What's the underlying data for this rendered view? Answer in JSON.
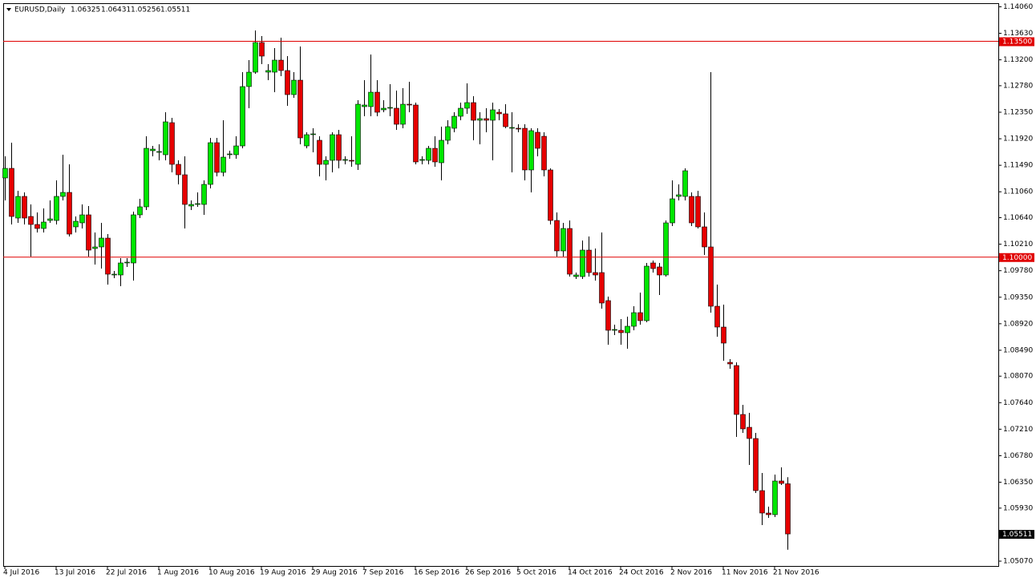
{
  "chart_data": {
    "type": "candlestick",
    "title": "EURUSD,Daily",
    "categories": [
      "4 Jul 2016",
      null,
      null,
      null,
      null,
      null,
      null,
      null,
      "13 Jul 2016",
      null,
      null,
      null,
      null,
      null,
      null,
      null,
      "22 Jul 2016",
      null,
      null,
      null,
      null,
      null,
      null,
      null,
      "1 Aug 2016",
      null,
      null,
      null,
      null,
      null,
      null,
      null,
      "10 Aug 2016",
      null,
      null,
      null,
      null,
      null,
      null,
      null,
      "19 Aug 2016",
      null,
      null,
      null,
      null,
      null,
      null,
      null,
      "29 Aug 2016",
      null,
      null,
      null,
      null,
      null,
      null,
      null,
      "7 Sep 2016",
      null,
      null,
      null,
      null,
      null,
      null,
      null,
      "16 Sep 2016",
      null,
      null,
      null,
      null,
      null,
      null,
      null,
      "26 Sep 2016",
      null,
      null,
      null,
      null,
      null,
      null,
      null,
      "5 Oct 2016",
      null,
      null,
      null,
      null,
      null,
      null,
      null,
      "14 Oct 2016",
      null,
      null,
      null,
      null,
      null,
      null,
      null,
      "24 Oct 2016",
      null,
      null,
      null,
      null,
      null,
      null,
      null,
      "2 Nov 2016",
      null,
      null,
      null,
      null,
      null,
      null,
      null,
      "11 Nov 2016",
      null,
      null,
      null,
      null,
      null,
      null,
      null,
      "21 Nov 2016",
      null,
      null
    ],
    "open": [
      1.11284,
      1.1144,
      1.10634,
      1.10985,
      1.1066,
      1.1053,
      1.10465,
      1.10595,
      1.10595,
      1.10985,
      1.1105,
      1.10491,
      1.10556,
      1.10686,
      1.1014,
      1.10166,
      1.10309,
      1.09711,
      1.09711,
      1.09906,
      1.09906,
      1.10686,
      1.10816,
      1.11726,
      1.117,
      1.11661,
      1.12181,
      1.11505,
      1.11336,
      1.10829,
      1.10855,
      1.10855,
      1.1118,
      1.11856,
      1.11375,
      1.11661,
      1.11661,
      1.11804,
      1.12766,
      1.13,
      1.13481,
      1.13,
      1.13,
      1.13195,
      1.13026,
      1.12636,
      1.1287,
      1.11804,
      1.11986,
      1.11895,
      1.11505,
      1.1157,
      1.11986,
      1.1157,
      1.1157,
      1.11505,
      1.12441,
      1.12441,
      1.12675,
      1.12389,
      1.12415,
      1.12415,
      1.12155,
      1.1248,
      1.12467,
      1.1157,
      1.1157,
      1.11765,
      1.11531,
      1.11895,
      1.1209,
      1.12285,
      1.12415,
      1.12506,
      1.1222,
      1.12246,
      1.1222,
      1.1235,
      1.12324,
      1.1209,
      1.1209,
      1.1209,
      1.11414,
      1.12025,
      1.1196,
      1.11414,
      1.10595,
      1.10101,
      1.10465,
      1.09685,
      1.09685,
      1.10114,
      1.0975,
      1.0975,
      1.09295,
      1.08814,
      1.08814,
      1.08775,
      1.08879,
      1.091,
      1.0897,
      1.09906,
      1.09841,
      1.09711,
      1.10556,
      1.10985,
      1.10985,
      1.10985,
      1.10985,
      1.10491,
      1.10166,
      1.09204,
      1.08866,
      1.08294,
      1.08242,
      1.07449,
      1.07241,
      1.07059,
      1.06214,
      1.0585,
      1.05824,
      1.0637,
      1.06325
    ],
    "high": [
      1.11635,
      1.11856,
      1.11076,
      1.1105,
      1.10855,
      1.10725,
      1.1079,
      1.1092,
      1.11245,
      1.11661,
      1.11505,
      1.1066,
      1.10855,
      1.10829,
      1.104,
      1.10556,
      1.10374,
      1.09776,
      1.09984,
      1.09984,
      1.10738,
      1.10946,
      1.1196,
      1.11804,
      1.1183,
      1.1235,
      1.12259,
      1.1157,
      1.11635,
      1.1092,
      1.1105,
      1.11245,
      1.11934,
      1.11934,
      1.1222,
      1.11726,
      1.1196,
      1.13,
      1.13195,
      1.13676,
      1.13585,
      1.1313,
      1.1339,
      1.13559,
      1.1326,
      1.13,
      1.13416,
      1.12025,
      1.1209,
      1.1196,
      1.11635,
      1.12025,
      1.12064,
      1.11635,
      1.1196,
      1.12545,
      1.1287,
      1.13286,
      1.1287,
      1.12545,
      1.12805,
      1.12701,
      1.1274,
      1.12844,
      1.12506,
      1.11635,
      1.11804,
      1.1196,
      1.12116,
      1.1222,
      1.1235,
      1.12506,
      1.12818,
      1.1261,
      1.1235,
      1.12415,
      1.12506,
      1.12402,
      1.1248,
      1.1235,
      1.12155,
      1.12155,
      1.1209,
      1.1209,
      1.12025,
      1.1144,
      1.10725,
      1.10556,
      1.10595,
      1.0975,
      1.1027,
      1.10335,
      1.1014,
      1.104,
      1.0936,
      1.08905,
      1.08996,
      1.09035,
      1.09204,
      1.09425,
      1.09906,
      1.09945,
      1.09906,
      1.10595,
      1.11245,
      1.1118,
      1.1144,
      1.1105,
      1.11076,
      1.10725,
      1.13,
      1.09555,
      1.0923,
      1.08346,
      1.08294,
      1.07605,
      1.07475,
      1.0715,
      1.065,
      1.05954,
      1.06474,
      1.06591,
      1.06431
    ],
    "low": [
      1.1092,
      1.1053,
      1.10556,
      1.1053,
      1.1001,
      1.104,
      1.104,
      1.10556,
      1.1053,
      1.1092,
      1.10335,
      1.104,
      1.10465,
      1.1001,
      1.0988,
      1.09815,
      1.09555,
      1.09659,
      1.09529,
      1.09841,
      1.0962,
      1.10634,
      1.10764,
      1.11635,
      1.1157,
      1.1157,
      1.11375,
      1.1118,
      1.10465,
      1.10764,
      1.10816,
      1.10686,
      1.11115,
      1.1131,
      1.1131,
      1.11596,
      1.11596,
      1.11765,
      1.12415,
      1.12974,
      1.1313,
      1.1287,
      1.12675,
      1.12935,
      1.12454,
      1.12584,
      1.1183,
      1.11765,
      1.117,
      1.1131,
      1.11245,
      1.11375,
      1.1144,
      1.11505,
      1.11466,
      1.11414,
      1.12285,
      1.12285,
      1.12285,
      1.1235,
      1.12285,
      1.12064,
      1.1209,
      1.1235,
      1.11505,
      1.11505,
      1.11505,
      1.11466,
      1.11245,
      1.1183,
      1.12025,
      1.1222,
      1.12324,
      1.11895,
      1.1183,
      1.12025,
      1.1157,
      1.1222,
      1.1209,
      1.11375,
      1.12025,
      1.11245,
      1.1105,
      1.11635,
      1.1131,
      1.1053,
      1.1001,
      1.1001,
      1.09685,
      1.09646,
      1.09646,
      1.09685,
      1.0962,
      1.09165,
      1.0858,
      1.08736,
      1.0858,
      1.08515,
      1.08814,
      1.08905,
      1.08944,
      1.0975,
      1.09386,
      1.09685,
      1.10504,
      1.1092,
      1.1092,
      1.10504,
      1.10465,
      1.10036,
      1.091,
      1.0871,
      1.0832,
      1.0819,
      1.07085,
      1.0715,
      1.0663,
      1.06175,
      1.05655,
      1.05772,
      1.05785,
      1.06305,
      1.05256
    ],
    "close": [
      1.1144,
      1.1066,
      1.10985,
      1.10634,
      1.1053,
      1.10465,
      1.10569,
      1.10621,
      1.10985,
      1.1105,
      1.10374,
      1.10582,
      1.10686,
      1.10114,
      1.10166,
      1.10309,
      1.09724,
      1.09724,
      1.09906,
      1.09919,
      1.10686,
      1.10816,
      1.11765,
      1.11752,
      1.11713,
      1.12194,
      1.11505,
      1.11336,
      1.10855,
      1.10855,
      1.10868,
      1.1118,
      1.11856,
      1.11375,
      1.11622,
      1.11674,
      1.11804,
      1.12766,
      1.13,
      1.13481,
      1.1326,
      1.13026,
      1.13195,
      1.13026,
      1.12636,
      1.1287,
      1.11934,
      1.11986,
      1.11999,
      1.11505,
      1.1157,
      1.11986,
      1.1157,
      1.11583,
      1.11557,
      1.1248,
      1.12467,
      1.12675,
      1.1235,
      1.12415,
      1.12428,
      1.12155,
      1.1248,
      1.12467,
      1.11544,
      1.11583,
      1.11765,
      1.11544,
      1.11895,
      1.12116,
      1.12285,
      1.12415,
      1.12506,
      1.1222,
      1.12246,
      1.1222,
      1.12389,
      1.12324,
      1.12116,
      1.12103,
      1.12077,
      1.11414,
      1.12051,
      1.11765,
      1.11414,
      1.10595,
      1.10101,
      1.10465,
      1.09724,
      1.09711,
      1.10114,
      1.0975,
      1.09711,
      1.09256,
      1.08814,
      1.08827,
      1.08775,
      1.08879,
      1.091,
      1.0897,
      1.09854,
      1.09815,
      1.09711,
      1.10556,
      1.10946,
      1.11011,
      1.11401,
      1.10556,
      1.10491,
      1.10166,
      1.09204,
      1.08866,
      1.08606,
      1.08268,
      1.07449,
      1.07215,
      1.07059,
      1.06214,
      1.0585,
      1.05824,
      1.0637,
      1.06331,
      1.05511
    ],
    "up_color": "#00e600",
    "down_color": "#e60000",
    "line_color": "#e00000",
    "ylim": [
      1.04992,
      1.14118
    ],
    "yticks": [
      {
        "value": 1.1406,
        "label": "1.14060"
      },
      {
        "value": 1.1363,
        "label": "1.13630"
      },
      {
        "value": 1.132,
        "label": "1.13200"
      },
      {
        "value": 1.1278,
        "label": "1.12780"
      },
      {
        "value": 1.1235,
        "label": "1.12350"
      },
      {
        "value": 1.1192,
        "label": "1.11920"
      },
      {
        "value": 1.1149,
        "label": "1.11490"
      },
      {
        "value": 1.1106,
        "label": "1.11060"
      },
      {
        "value": 1.1064,
        "label": "1.10640"
      },
      {
        "value": 1.1021,
        "label": "1.10210"
      },
      {
        "value": 1.0978,
        "label": "1.09780"
      },
      {
        "value": 1.0935,
        "label": "1.09350"
      },
      {
        "value": 1.0892,
        "label": "1.08920"
      },
      {
        "value": 1.0849,
        "label": "1.08490"
      },
      {
        "value": 1.0807,
        "label": "1.08070"
      },
      {
        "value": 1.0764,
        "label": "1.07640"
      },
      {
        "value": 1.0721,
        "label": "1.07210"
      },
      {
        "value": 1.0678,
        "label": "1.06780"
      },
      {
        "value": 1.0635,
        "label": "1.06350"
      },
      {
        "value": 1.0593,
        "label": "1.05930"
      },
      {
        "value": 1.0507,
        "label": "1.05070"
      }
    ],
    "hlines": [
      {
        "value": 1.135,
        "label": "1.13500"
      },
      {
        "value": 1.1,
        "label": "1.10000"
      }
    ]
  }
}
